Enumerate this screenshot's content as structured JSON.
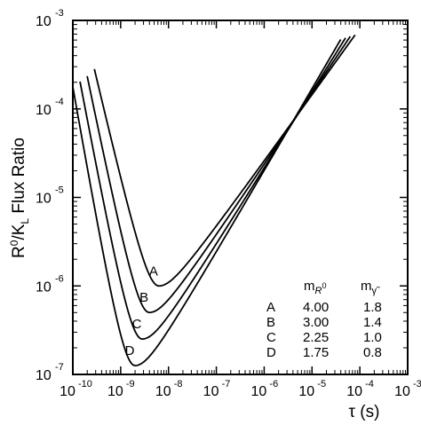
{
  "chart_data": {
    "type": "line",
    "title": "",
    "xlabel": "τ (s)",
    "ylabel_parts": {
      "main": "R",
      "sup": "0",
      "slash": "/K",
      "sub": "L",
      "rest": " Flux Ratio"
    },
    "xscale": "log",
    "yscale": "log",
    "xlim_exp": [
      -10,
      -3
    ],
    "ylim_exp": [
      -7,
      -3
    ],
    "xticks": [
      {
        "base": "10",
        "exp": "-10"
      },
      {
        "base": "10",
        "exp": "-9"
      },
      {
        "base": "10",
        "exp": "-8"
      },
      {
        "base": "10",
        "exp": "-7"
      },
      {
        "base": "10",
        "exp": "-6"
      },
      {
        "base": "10",
        "exp": "-5"
      },
      {
        "base": "10",
        "exp": "-4"
      },
      {
        "base": "10",
        "exp": "-3"
      }
    ],
    "yticks": [
      {
        "base": "10",
        "exp": "-7"
      },
      {
        "base": "10",
        "exp": "-6"
      },
      {
        "base": "10",
        "exp": "-5"
      },
      {
        "base": "10",
        "exp": "-4"
      },
      {
        "base": "10",
        "exp": "-3"
      }
    ],
    "grid": false,
    "series": [
      {
        "name": "A",
        "min_x_exp": -8.2,
        "min_y_exp": -6.0,
        "left_x_at_top": -9.5,
        "right_x_at_top": -4.15
      },
      {
        "name": "B",
        "min_x_exp": -8.4,
        "min_y_exp": -6.3,
        "left_x_at_top": -9.65,
        "right_x_at_top": -4.25
      },
      {
        "name": "C",
        "min_x_exp": -8.55,
        "min_y_exp": -6.6,
        "left_x_at_top": -9.8,
        "right_x_at_top": -4.35
      },
      {
        "name": "D",
        "min_x_exp": -8.7,
        "min_y_exp": -6.9,
        "left_x_at_top": -9.95,
        "right_x_at_top": -4.45
      }
    ],
    "table": {
      "headers": [
        {
          "main": "m",
          "sub": "R",
          "subsup": "0"
        },
        {
          "main": "m",
          "sub": "γ̃"
        }
      ],
      "rows": [
        {
          "label": "A",
          "m1": "4.00",
          "m2": "1.8"
        },
        {
          "label": "B",
          "m1": "3.00",
          "m2": "1.4"
        },
        {
          "label": "C",
          "m1": "2.25",
          "m2": "1.0"
        },
        {
          "label": "D",
          "m1": "1.75",
          "m2": "0.8"
        }
      ]
    }
  }
}
